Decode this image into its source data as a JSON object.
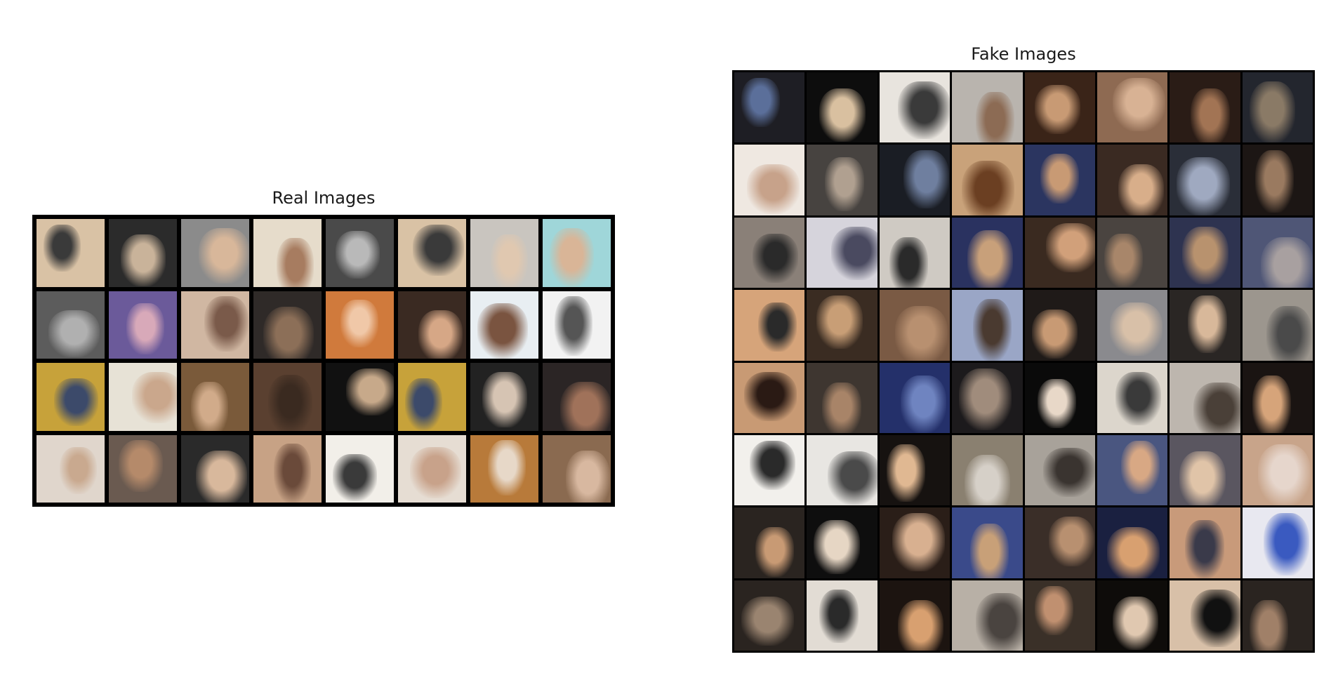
{
  "real_panel": {
    "title": "Real Images",
    "rows": 4,
    "cols": 8,
    "tiles": [
      [
        "#d9c2a5",
        "#3a3a3a"
      ],
      [
        "#2b2b2b",
        "#c9b39a"
      ],
      [
        "#8b8b8b",
        "#d8b79a"
      ],
      [
        "#e6dccb",
        "#a77c60"
      ],
      [
        "#4a4a4a",
        "#b9b9b9"
      ],
      [
        "#d9c2a5",
        "#3a3a3a"
      ],
      [
        "#c9c5bf",
        "#e0c8b0"
      ],
      [
        "#9fd6d9",
        "#d9b597"
      ],
      [
        "#5c5c5c",
        "#b0b0b0"
      ],
      [
        "#6b5a9a",
        "#d8a9b9"
      ],
      [
        "#d0b7a2",
        "#7a5a4a"
      ],
      [
        "#2f2a28",
        "#8c6f58"
      ],
      [
        "#d07a3c",
        "#f0c8a8"
      ],
      [
        "#3a2a22",
        "#d6a786"
      ],
      [
        "#e8eef2",
        "#7a5440"
      ],
      [
        "#f2f2f2",
        "#555555"
      ],
      [
        "#c7a23a",
        "#3c4a6a"
      ],
      [
        "#e7e2d6",
        "#caa78c"
      ],
      [
        "#7a5a3a",
        "#d1ab8a"
      ],
      [
        "#5a4030",
        "#3a2a20"
      ],
      [
        "#111111",
        "#c7a98a"
      ],
      [
        "#c7a23a",
        "#3c4a6a"
      ],
      [
        "#222222",
        "#d6c4b3"
      ],
      [
        "#2b2525",
        "#a0725a"
      ],
      [
        "#e0d6cc",
        "#c9a98f"
      ],
      [
        "#6a5a50",
        "#b58a6a"
      ],
      [
        "#2a2a2a",
        "#d8b89c"
      ],
      [
        "#c7a285",
        "#6a4a3a"
      ],
      [
        "#f2efe9",
        "#3a3a3a"
      ],
      [
        "#e6ddd3",
        "#c8a28a"
      ],
      [
        "#b87a3a",
        "#e7d8c8"
      ],
      [
        "#8a6a50",
        "#d8b8a0"
      ]
    ]
  },
  "fake_panel": {
    "title": "Fake Images",
    "rows": 8,
    "cols": 8,
    "tiles": [
      [
        "#1e1e24",
        "#5b6f9a"
      ],
      [
        "#0d0d0d",
        "#d9c0a0"
      ],
      [
        "#e8e4de",
        "#3a3a3a"
      ],
      [
        "#b9b4ae",
        "#8c6b54"
      ],
      [
        "#3a2418",
        "#c89a74"
      ],
      [
        "#8e6a52",
        "#d8b294"
      ],
      [
        "#2a1c16",
        "#a27454"
      ],
      [
        "#23262e",
        "#8a7a66"
      ],
      [
        "#efe8e1",
        "#c7a28a"
      ],
      [
        "#474340",
        "#b0a090"
      ],
      [
        "#1a1d24",
        "#6f7f9f"
      ],
      [
        "#c9a27a",
        "#6b3f22"
      ],
      [
        "#2b3560",
        "#c89a74"
      ],
      [
        "#3a2a22",
        "#d8ae8a"
      ],
      [
        "#2a2e38",
        "#9fa9c0"
      ],
      [
        "#1c1614",
        "#9a7a60"
      ],
      [
        "#8a8078",
        "#2a2a2a"
      ],
      [
        "#d6d4dc",
        "#4a4a60"
      ],
      [
        "#cfcac3",
        "#2a2a2a"
      ],
      [
        "#2a3260",
        "#c8a07a"
      ],
      [
        "#3a2a20",
        "#d1a07a"
      ],
      [
        "#4a4440",
        "#a8866a"
      ],
      [
        "#2e3350",
        "#b8926e"
      ],
      [
        "#4f5676",
        "#a8a0a0"
      ],
      [
        "#d6a47a",
        "#2a2a2a"
      ],
      [
        "#3a2c22",
        "#c89e76"
      ],
      [
        "#7a5a44",
        "#b89070"
      ],
      [
        "#9aa6c6",
        "#4a3a30"
      ],
      [
        "#1f1a18",
        "#c89a74"
      ],
      [
        "#8a8a8e",
        "#d8c0a8"
      ],
      [
        "#2a2624",
        "#d8b89a"
      ],
      [
        "#9c968e",
        "#4a4a4a"
      ],
      [
        "#c89a74",
        "#2a1a14"
      ],
      [
        "#3e3630",
        "#a88468"
      ],
      [
        "#24306a",
        "#6f84c0"
      ],
      [
        "#1c1a1c",
        "#a08c7c"
      ],
      [
        "#0a0a0a",
        "#e8d8c8"
      ],
      [
        "#dcd6cc",
        "#3a3a3a"
      ],
      [
        "#bdb6ae",
        "#4a4038"
      ],
      [
        "#1a1412",
        "#d6a47a"
      ],
      [
        "#f2f0ec",
        "#2a2a2a"
      ],
      [
        "#e8e6e2",
        "#4a4a4a"
      ],
      [
        "#161210",
        "#e0b892"
      ],
      [
        "#8a8070",
        "#d6d0c8"
      ],
      [
        "#a8a29a",
        "#3a3430"
      ],
      [
        "#4a5680",
        "#d8a884"
      ],
      [
        "#5a5660",
        "#e0c4a8"
      ],
      [
        "#c8a48a",
        "#e6d6cc"
      ],
      [
        "#2a2420",
        "#c89a74"
      ],
      [
        "#0e0e0e",
        "#e6d6c4"
      ],
      [
        "#2a1e18",
        "#d8b090"
      ],
      [
        "#3a4a8a",
        "#c8a078"
      ],
      [
        "#3a2e28",
        "#b89070"
      ],
      [
        "#1a2040",
        "#d8a070"
      ],
      [
        "#c89a7a",
        "#3a3a4a"
      ],
      [
        "#e8e8f0",
        "#3a5ac0"
      ],
      [
        "#2a2420",
        "#9a8470"
      ],
      [
        "#e2dcd4",
        "#2a2a2a"
      ],
      [
        "#1c1410",
        "#d8a070"
      ],
      [
        "#b8b0a6",
        "#4a4440"
      ],
      [
        "#3a3028",
        "#c09070"
      ],
      [
        "#0e0c0a",
        "#e0c8b0"
      ],
      [
        "#d8c0a8",
        "#111111"
      ],
      [
        "#2a2420",
        "#a08068"
      ]
    ]
  }
}
